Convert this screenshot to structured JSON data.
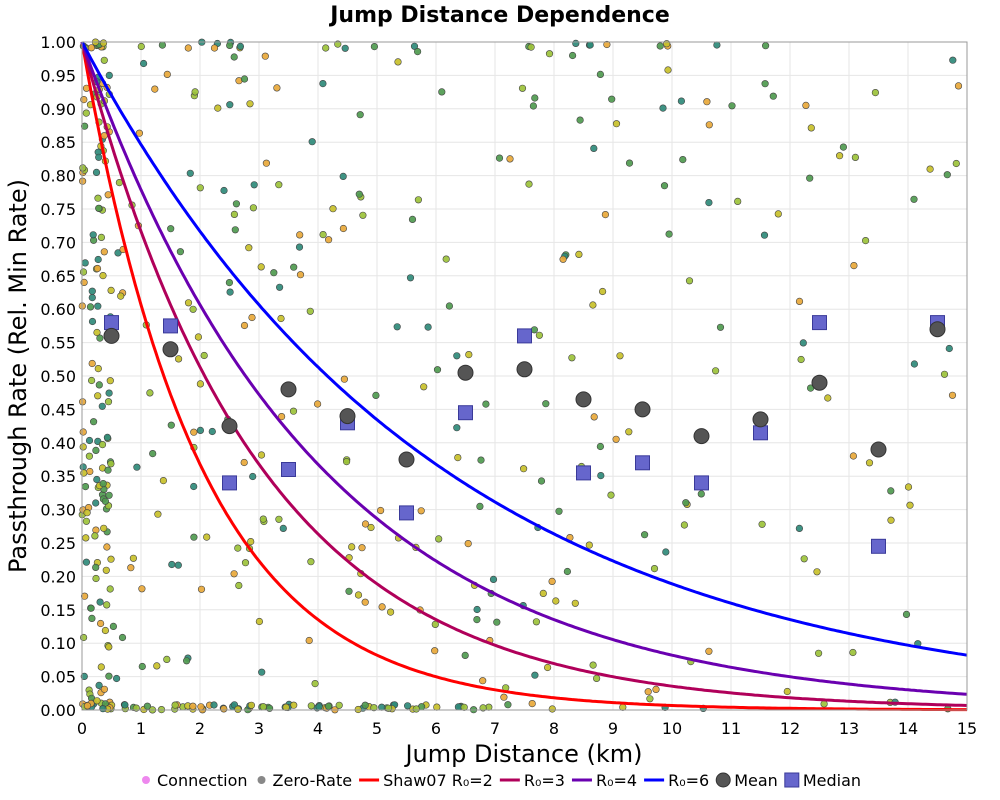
{
  "chart_data": {
    "type": "scatter",
    "title": "Jump Distance Dependence",
    "xlabel": "Jump Distance (km)",
    "ylabel": "Passthrough Rate (Rel. Min Rate)",
    "xlim": [
      0,
      15
    ],
    "ylim": [
      0,
      1
    ],
    "x_ticks": [
      0,
      1,
      2,
      3,
      4,
      5,
      6,
      7,
      8,
      9,
      10,
      11,
      12,
      13,
      14,
      15
    ],
    "y_ticks": [
      0,
      0.05,
      0.1,
      0.15,
      0.2,
      0.25,
      0.3,
      0.35,
      0.4,
      0.45,
      0.5,
      0.55,
      0.6,
      0.65,
      0.7,
      0.75,
      0.8,
      0.85,
      0.9,
      0.95,
      1.0
    ],
    "grid": true,
    "legend_position": "bottom",
    "point_colors": [
      "#c8c02a",
      "#e8a83a",
      "#4f9a4f",
      "#2f8a7a",
      "#9cc23a"
    ],
    "curves": [
      {
        "name": "Shaw07 R₀=2",
        "color": "#ff0000",
        "r0": 2
      },
      {
        "name": "R₀=3",
        "color": "#b0005a",
        "r0": 3
      },
      {
        "name": "R₀=4",
        "color": "#6a00b0",
        "r0": 4
      },
      {
        "name": "R₀=6",
        "color": "#0000ff",
        "r0": 6
      }
    ],
    "mean": {
      "name": "Mean",
      "color": "#555555",
      "x": [
        0.5,
        1.5,
        2.5,
        3.5,
        4.5,
        5.5,
        6.5,
        7.5,
        8.5,
        9.5,
        10.5,
        11.5,
        12.5,
        13.5,
        14.5
      ],
      "y": [
        0.56,
        0.54,
        0.425,
        0.48,
        0.44,
        0.375,
        0.505,
        0.51,
        0.465,
        0.45,
        0.41,
        0.435,
        0.49,
        0.39,
        0.57
      ]
    },
    "median": {
      "name": "Median",
      "color": "#6666cc",
      "x": [
        0.5,
        1.5,
        2.5,
        3.5,
        4.5,
        5.5,
        6.5,
        7.5,
        8.5,
        9.5,
        10.5,
        11.5,
        12.5,
        13.5,
        14.5
      ],
      "y": [
        0.58,
        0.575,
        0.34,
        0.36,
        0.43,
        0.295,
        0.445,
        0.56,
        0.355,
        0.37,
        0.34,
        0.415,
        0.58,
        0.245,
        0.58
      ]
    },
    "legend": [
      {
        "label": "Connection",
        "kind": "dot",
        "color": "#ee88ee"
      },
      {
        "label": "Zero-Rate",
        "kind": "dot",
        "color": "#888888"
      },
      {
        "label": "Shaw07 R₀=2",
        "kind": "line",
        "color": "#ff0000"
      },
      {
        "label": "R₀=3",
        "kind": "line",
        "color": "#b0005a"
      },
      {
        "label": "R₀=4",
        "kind": "line",
        "color": "#6a00b0"
      },
      {
        "label": "R₀=6",
        "kind": "line",
        "color": "#0000ff"
      },
      {
        "label": "Mean",
        "kind": "circle",
        "color": "#555555"
      },
      {
        "label": "Median",
        "kind": "square",
        "color": "#6666cc"
      }
    ]
  }
}
